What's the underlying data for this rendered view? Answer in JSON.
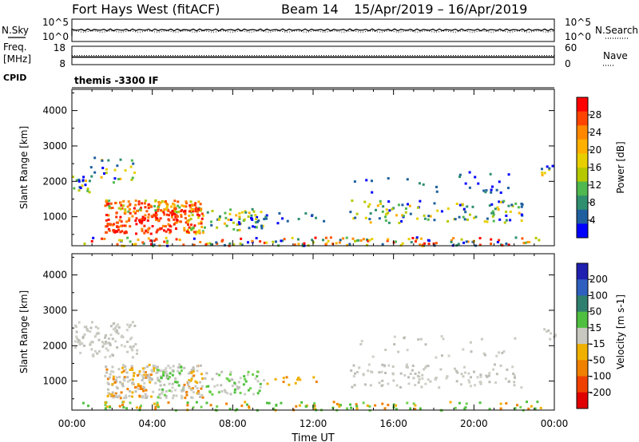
{
  "header": {
    "title": "Fort Hays West (fitACF)",
    "beam": "Beam 14",
    "date_range": "15/Apr/2019 – 16/Apr/2019"
  },
  "chart_data": [
    {
      "type": "line",
      "panel": "noise",
      "left_label": "N.Sky",
      "right_label": "N.Search",
      "left_ticks": [
        "10^5",
        "10^0"
      ],
      "right_ticks": [
        "10^5",
        "10^0"
      ]
    },
    {
      "type": "line",
      "panel": "freq-nave",
      "left_label_top": "Freq.",
      "left_label_bottom": "[MHz]",
      "right_label": "Nave",
      "left_ticks": [
        18,
        8
      ],
      "right_ticks": [
        60,
        0
      ],
      "cpid_label": "CPID",
      "cpid_value": "themis -3300 IF"
    },
    {
      "type": "heatmap",
      "panel": "power",
      "ylabel": "Slant Range [km]",
      "ylim": [
        180,
        4600
      ],
      "yticks": [
        1000,
        2000,
        3000,
        4000
      ],
      "colorbar_label": "Power [dB]",
      "colorbar_ticks": [
        "28",
        "24",
        "20",
        "16",
        "12",
        "8",
        "4"
      ],
      "colorbar_colors": [
        "#ff0000",
        "#ff4400",
        "#ff8800",
        "#ffb000",
        "#e8d000",
        "#b6c800",
        "#4fb84f",
        "#2f8f6f",
        "#1f5f9f",
        "#0000ff"
      ]
    },
    {
      "type": "heatmap",
      "panel": "velocity",
      "ylabel": "Slant Range [km]",
      "ylim": [
        180,
        4600
      ],
      "yticks": [
        1000,
        2000,
        3000,
        4000
      ],
      "colorbar_label": "Velocity [m s-1]",
      "colorbar_ticks": [
        "200",
        "100",
        "50",
        "15",
        "-15",
        "-50",
        "-100",
        "-200"
      ],
      "colorbar_colors": [
        "#1f1fb0",
        "#2f5fbf",
        "#2f7f6f",
        "#4fbf3f",
        "#c8c8c0",
        "#f0b000",
        "#f08000",
        "#f04000",
        "#e00000"
      ],
      "xlabel": "Time UT",
      "xticks": [
        "00:00",
        "04:00",
        "08:00",
        "12:00",
        "16:00",
        "20:00",
        "00:00"
      ]
    }
  ]
}
